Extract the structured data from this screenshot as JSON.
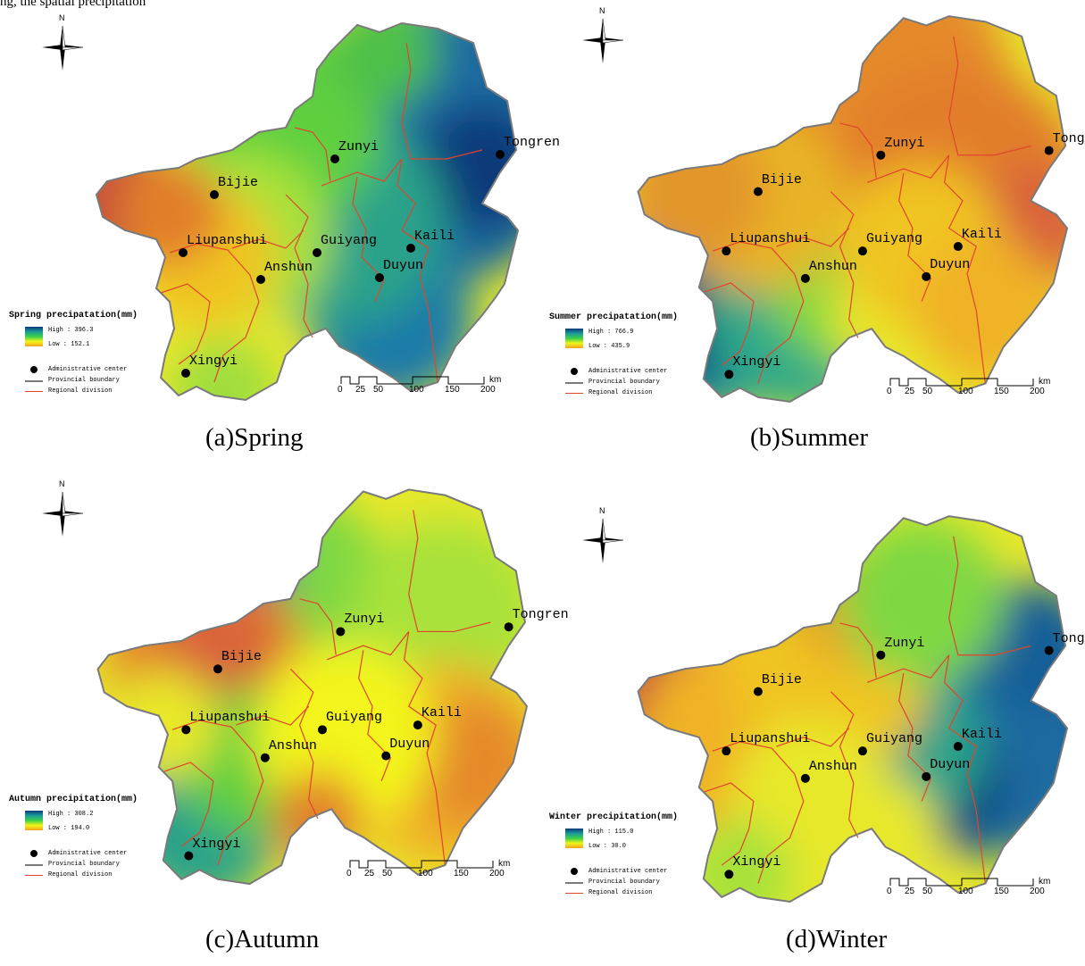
{
  "header_fragment": "ng, the spatial precipitation",
  "panels": [
    {
      "key": "spring",
      "caption": "(a)Spring",
      "legend": {
        "title": "Spring precipatation(mm)",
        "high": "High : 396.3",
        "low": "Low : 152.1"
      },
      "ramp_colors": [
        "#0a3a7a",
        "#1b9a9a",
        "#3cd04a",
        "#f3f51a",
        "#f1a21c"
      ]
    },
    {
      "key": "summer",
      "caption": "(b)Summer",
      "legend": {
        "title": "Summer precipatation(mm)",
        "high": "High : 766.9",
        "low": "Low : 435.9"
      },
      "ramp_colors": [
        "#0a3a7a",
        "#1b9a9a",
        "#3cd04a",
        "#f3f51a",
        "#f1a21c"
      ]
    },
    {
      "key": "autumn",
      "caption": "(c)Autumn",
      "legend": {
        "title": "Autumn precipitation(mm)",
        "high": "High : 308.2",
        "low": "Low : 194.0"
      },
      "ramp_colors": [
        "#0a3a7a",
        "#1b9a9a",
        "#3cd04a",
        "#f3f51a",
        "#f1a21c"
      ]
    },
    {
      "key": "winter",
      "caption": "(d)Winter",
      "legend": {
        "title": "Winter precipitation(mm)",
        "high": "High : 115.0",
        "low": "Low : 30.0"
      },
      "ramp_colors": [
        "#0a3a7a",
        "#1b9a9a",
        "#3cd04a",
        "#f3f51a",
        "#f1a21c"
      ]
    }
  ],
  "cities": [
    "Zunyi",
    "Tongren",
    "Bijie",
    "Liupanshui",
    "Guiyang",
    "Kaili",
    "Anshun",
    "Duyun",
    "Xingyi"
  ],
  "legend_common": {
    "admin": "Administrative center",
    "provincial": "Provincial boundary",
    "regional": "Regional division"
  },
  "compass_letter": "N",
  "scalebar": {
    "ticks": [
      "0",
      "25",
      "50",
      "100",
      "150",
      "200"
    ],
    "unit": "km"
  },
  "colors": {
    "provincial_boundary": "#7a7a7a",
    "regional_division": "#e0452c",
    "high": "#0a3a7a",
    "low": "#f1a21c",
    "very_low": "#c6503a"
  }
}
